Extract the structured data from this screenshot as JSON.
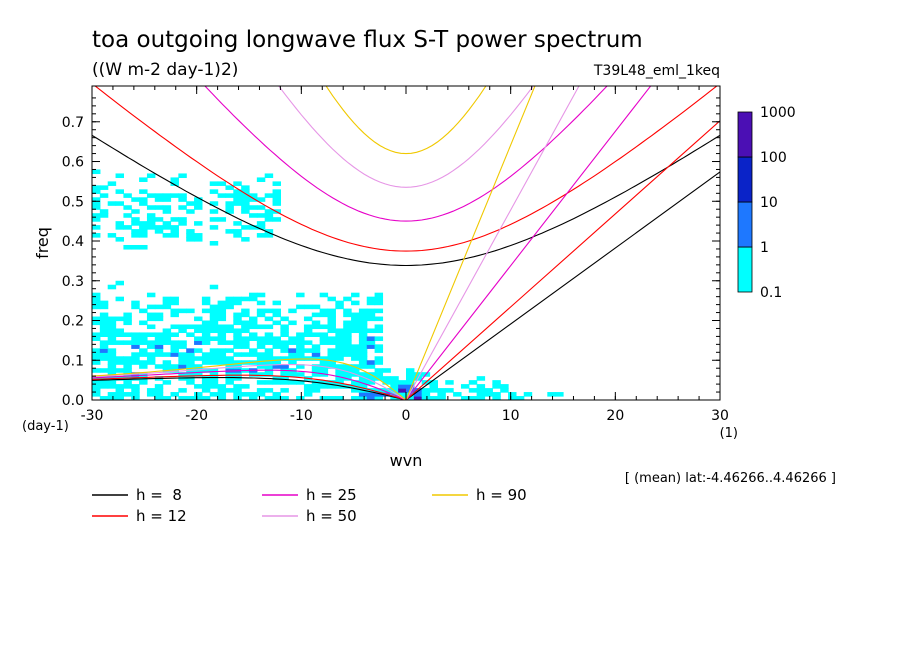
{
  "chart_data": {
    "type": "heatmap",
    "title": "toa outgoing longwave flux S-T power spectrum",
    "subtitle": "((W m-2 day-1)2)",
    "run_label": "T39L48_eml_1keq",
    "xlabel": "wvn",
    "ylabel": "freq",
    "y_unit": "(day-1)",
    "x_unit": "(1)",
    "xlim": [
      -30,
      30
    ],
    "ylim": [
      0,
      0.79
    ],
    "x_ticks": [
      "-30",
      "-20",
      "-10",
      "0",
      "10",
      "20",
      "30"
    ],
    "x_tick_values": [
      -30,
      -20,
      -10,
      0,
      10,
      20,
      30
    ],
    "y_ticks": [
      "0.0",
      "0.1",
      "0.2",
      "0.3",
      "0.4",
      "0.5",
      "0.6",
      "0.7"
    ],
    "y_tick_values": [
      0,
      0.1,
      0.2,
      0.3,
      0.4,
      0.5,
      0.6,
      0.7
    ],
    "colorbar": {
      "levels": [
        "0.1",
        "1",
        "10",
        "100",
        "1000"
      ],
      "colors": [
        "#00ffff",
        "#1e78ff",
        "#0a23c8",
        "#4b0fb4"
      ]
    },
    "mean_note": "[ (mean) lat:-4.46266..4.46266 ]",
    "dispersion_curves": [
      {
        "label": "h =  8",
        "h": 8,
        "color": "#000000"
      },
      {
        "label": "h = 12",
        "h": 12,
        "color": "#ff0000"
      },
      {
        "label": "h = 25",
        "h": 25,
        "color": "#e600c8"
      },
      {
        "label": "h = 50",
        "h": 50,
        "color": "#e696e6"
      },
      {
        "label": "h = 90",
        "h": 90,
        "color": "#f0c800"
      }
    ],
    "power_regions": [
      {
        "level": 1,
        "region": "broad low-frequency band",
        "x": [
          -29,
          -4
        ],
        "y": [
          0.02,
          0.3
        ]
      },
      {
        "level": 1,
        "region": "upper westward patches",
        "x": [
          -29,
          -14
        ],
        "y": [
          0.3,
          0.6
        ]
      },
      {
        "level": 1,
        "region": "eastward low-frequency band",
        "x": [
          0,
          28
        ],
        "y": [
          0.02,
          0.12
        ]
      },
      {
        "level": 10,
        "region": "near-origin core",
        "x": [
          -4,
          4
        ],
        "y": [
          0,
          0.05
        ]
      },
      {
        "level": 100,
        "region": "origin maximum",
        "x": [
          -1,
          1
        ],
        "y": [
          0,
          0.02
        ]
      }
    ]
  }
}
